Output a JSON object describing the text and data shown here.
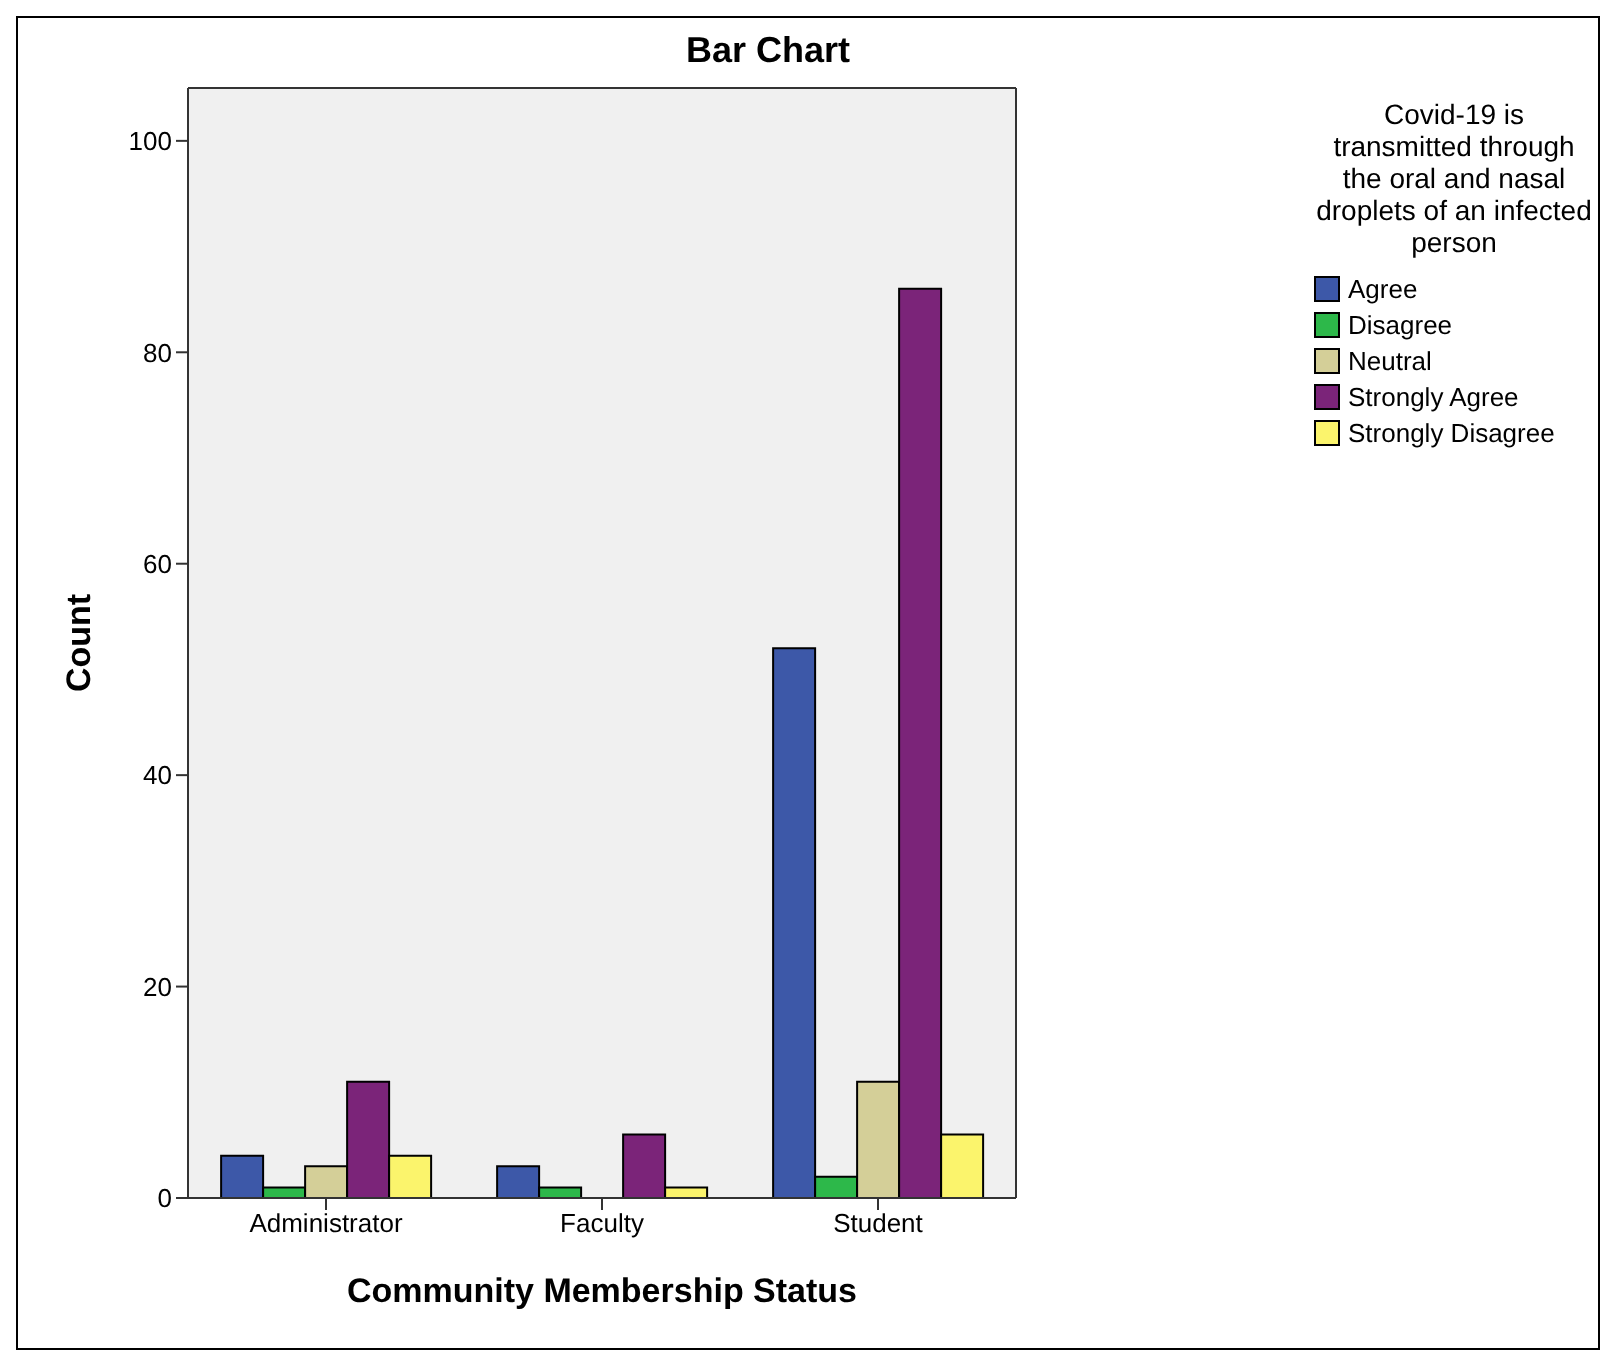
{
  "chart_data": {
    "type": "bar",
    "title": "Bar Chart",
    "xlabel": "Community Membership Status",
    "ylabel": "Count",
    "legend_title": "Covid-19 is transmitted through the oral and nasal droplets of an infected person",
    "categories": [
      "Administrator",
      "Faculty",
      "Student"
    ],
    "series": [
      {
        "name": "Agree",
        "color": "#3d58a8",
        "values": [
          4,
          3,
          52
        ]
      },
      {
        "name": "Disagree",
        "color": "#2db84a",
        "values": [
          1,
          1,
          2
        ]
      },
      {
        "name": "Neutral",
        "color": "#d4cf98",
        "values": [
          3,
          0,
          11
        ]
      },
      {
        "name": "Strongly Agree",
        "color": "#7b2479",
        "values": [
          11,
          6,
          86
        ]
      },
      {
        "name": "Strongly Disagree",
        "color": "#fbf46c",
        "values": [
          4,
          1,
          6
        ]
      }
    ],
    "ylim": [
      0,
      105
    ],
    "yticks": [
      0,
      20,
      40,
      60,
      80,
      100
    ],
    "grid": false,
    "legend": "top right"
  }
}
